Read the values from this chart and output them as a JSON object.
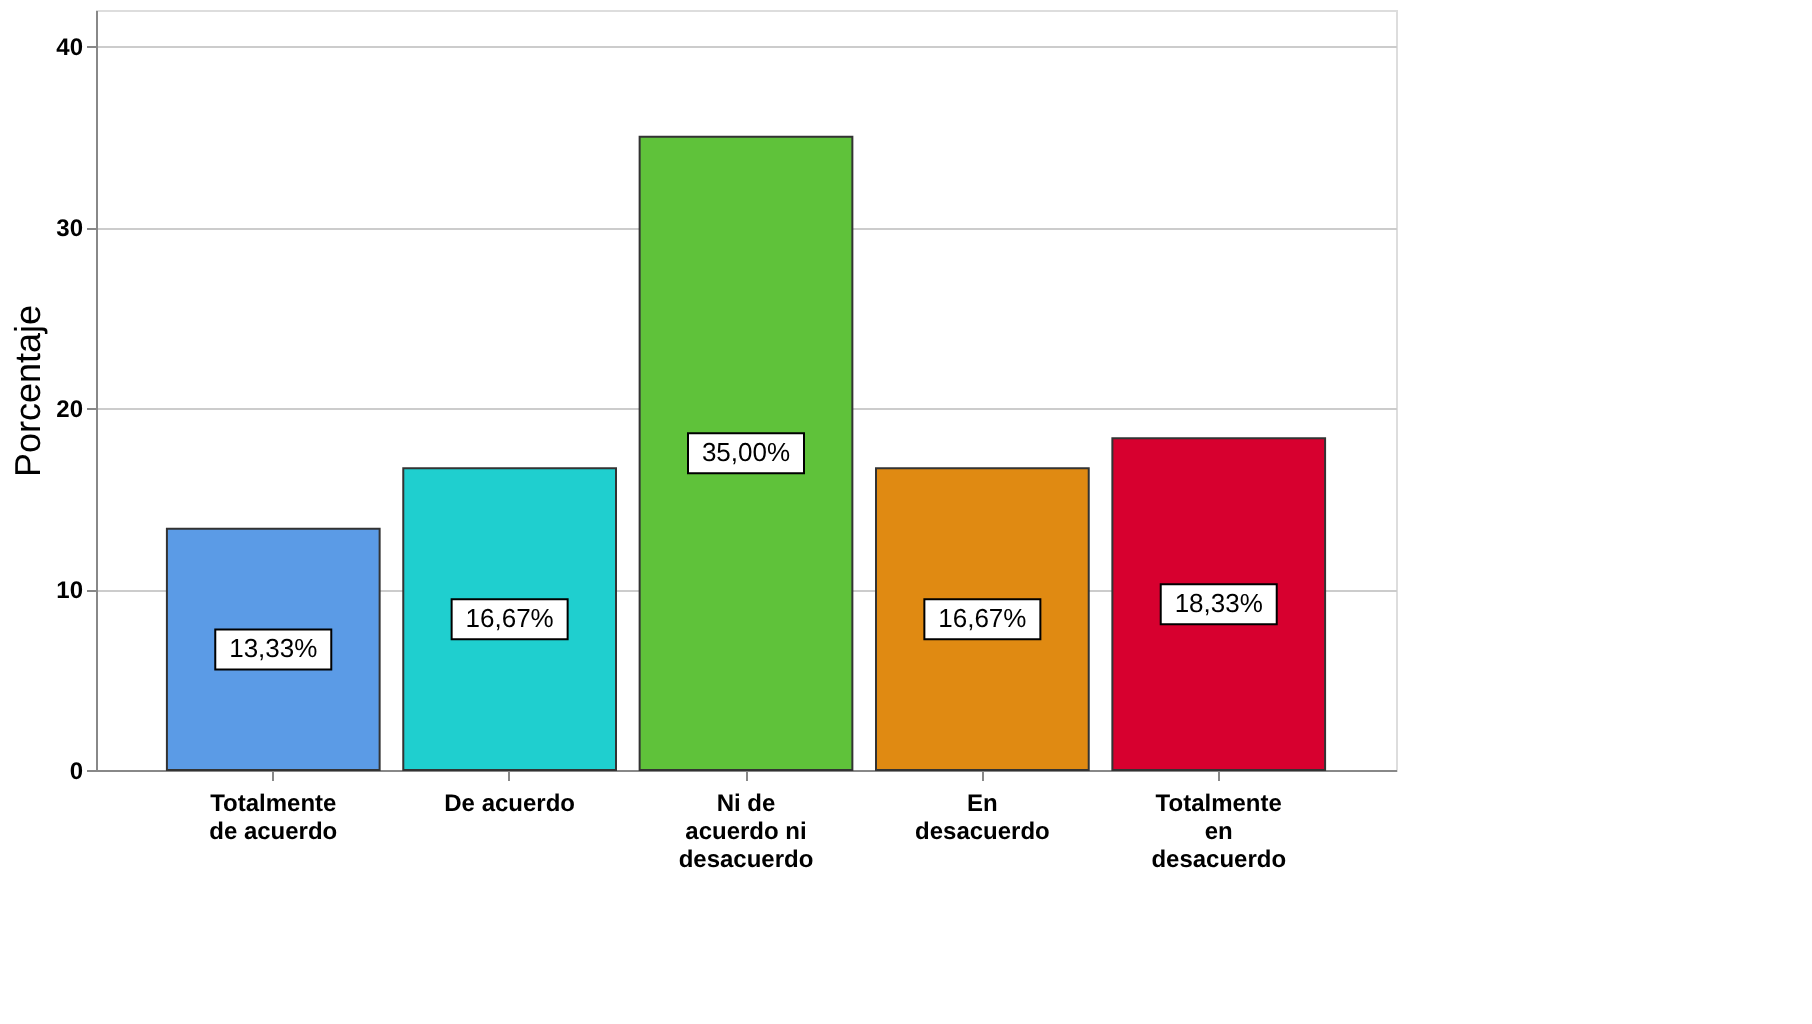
{
  "chart_data": {
    "type": "bar",
    "ylabel": "Porcentaje",
    "categories": [
      "Totalmente de acuerdo",
      "De acuerdo",
      "Ni de acuerdo ni desacuerdo",
      "En desacuerdo",
      "Totalmente en desacuerdo"
    ],
    "values": [
      13.33,
      16.67,
      35.0,
      16.67,
      18.33
    ],
    "colors": [
      "#5b9be6",
      "#1fcfcf",
      "#5fc23a",
      "#e08a12",
      "#d7002f"
    ],
    "value_labels": [
      "13,33%",
      "16,67%",
      "35,00%",
      "16,67%",
      "18,33%"
    ],
    "ylim": [
      0,
      42
    ],
    "yticks": [
      0,
      10,
      20,
      30,
      40
    ],
    "grid": "y"
  }
}
